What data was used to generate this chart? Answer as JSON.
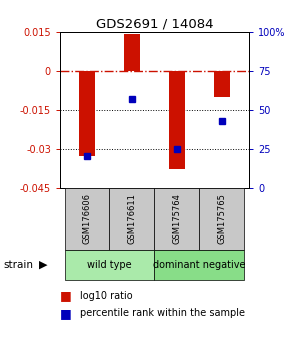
{
  "title": "GDS2691 / 14084",
  "samples": [
    "GSM176606",
    "GSM176611",
    "GSM175764",
    "GSM175765"
  ],
  "log10_ratios": [
    -0.033,
    0.014,
    -0.038,
    -0.01
  ],
  "percentile_ranks": [
    20,
    57,
    25,
    43
  ],
  "wild_type_color": "#aaeaaa",
  "dominant_negative_color": "#88dd88",
  "bar_color": "#CC1100",
  "dot_color": "#0000BB",
  "ylim_left": [
    -0.045,
    0.015
  ],
  "ylim_right": [
    0,
    100
  ],
  "yticks_left": [
    0.015,
    0.0,
    -0.015,
    -0.03,
    -0.045
  ],
  "yticks_left_labels": [
    "0.015",
    "0",
    "-0.015",
    "-0.03",
    "-0.045"
  ],
  "yticks_right": [
    100,
    75,
    50,
    25,
    0
  ],
  "yticks_right_labels": [
    "100%",
    "75",
    "50",
    "25",
    "0"
  ],
  "zero_line_color": "#CC1100",
  "grid_line_color": "#444444",
  "sample_box_color": "#C8C8C8",
  "legend_red_label": "log10 ratio",
  "legend_blue_label": "percentile rank within the sample",
  "bar_width": 0.35
}
